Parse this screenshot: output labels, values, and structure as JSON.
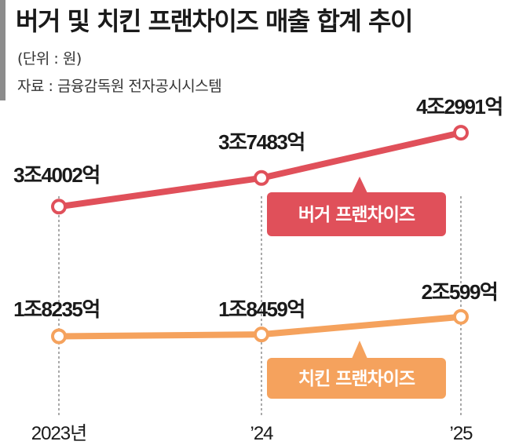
{
  "header": {
    "title": "버거 및 치킨 프랜차이즈 매출 합계 추이",
    "unit": "(단위 : 원)",
    "source": "자료 : 금융감독원 전자공시시스템"
  },
  "chart_data": {
    "type": "line",
    "title": "버거 및 치킨 프랜차이즈 매출 합계 추이",
    "unit": "원",
    "categories": [
      "2023년",
      "’24",
      "’25"
    ],
    "series": [
      {
        "name": "버거 프랜차이즈",
        "color": "#e0505a",
        "values": [
          3400200000000,
          3748300000000,
          4299100000000
        ],
        "labels": [
          "3조4002억",
          "3조7483억",
          "4조2991억"
        ]
      },
      {
        "name": "치킨 프랜차이즈",
        "color": "#f5a25d",
        "values": [
          1823500000000,
          1845900000000,
          2059900000000
        ],
        "labels": [
          "1조8235억",
          "1조8459억",
          "2조599억"
        ]
      }
    ],
    "grid": "vertical dashed guide lines",
    "legend_placement": "label boxes under each line"
  }
}
